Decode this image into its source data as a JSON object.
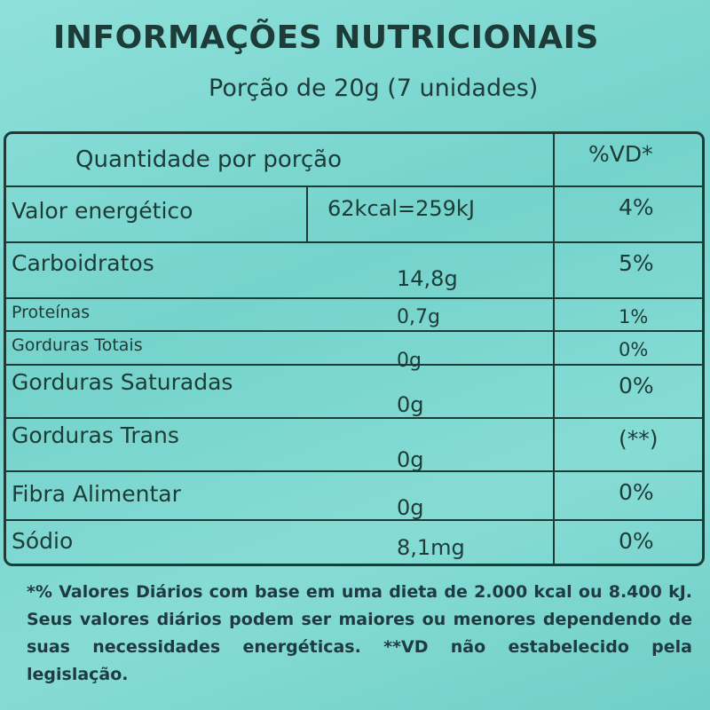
{
  "header": {
    "title": "INFORMAÇÕES NUTRICIONAIS",
    "subtitle": "Porção de 20g (7 unidades)"
  },
  "table": {
    "columns": [
      "Quantidade por porção",
      "%VD*"
    ],
    "rows": [
      [
        "Valor energético",
        "62kcal=259kJ",
        "4%"
      ],
      [
        "Carboidratos",
        "14,8g",
        "5%"
      ],
      [
        "Proteínas",
        "0,7g",
        "1%"
      ],
      [
        "Gorduras Totais",
        "0g",
        "0%"
      ],
      [
        "Gorduras Saturadas",
        "0g",
        "0%"
      ],
      [
        "Gorduras Trans",
        "0g",
        "(**)"
      ],
      [
        "Fibra Alimentar",
        "0g",
        "0%"
      ],
      [
        "Sódio",
        "8,1mg",
        "0%"
      ]
    ]
  },
  "footnote": "*% Valores Diários com base em uma dieta de 2.000 kcal ou 8.400 kJ. Seus valores diários podem ser maiores ou menores dependendo de suas necessidades energéticas. **VD não estabelecido pela legislação."
}
